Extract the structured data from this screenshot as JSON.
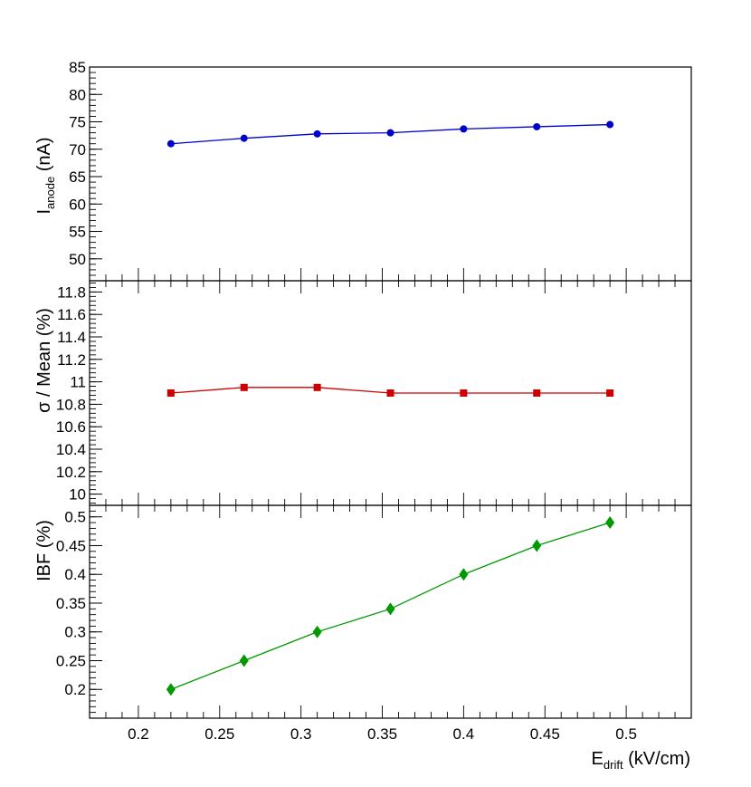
{
  "chart_data": [
    {
      "type": "line",
      "ylabel_main": "I",
      "ylabel_sub": "anode",
      "ylabel_rest": " (nA)",
      "ylim": [
        46,
        85
      ],
      "yticks": [
        50,
        55,
        60,
        65,
        70,
        75,
        80,
        85
      ],
      "ytick_labels": [
        "50",
        "55",
        "60",
        "65",
        "70",
        "75",
        "80",
        "85"
      ],
      "marker": "circle",
      "color": "#0000cc",
      "x": [
        0.22,
        0.265,
        0.31,
        0.355,
        0.4,
        0.445,
        0.49
      ],
      "y": [
        71.0,
        72.0,
        72.8,
        73.0,
        73.7,
        74.1,
        74.5
      ]
    },
    {
      "type": "line",
      "ylabel": "σ / Mean (%)",
      "ylim": [
        9.9,
        11.9
      ],
      "yticks": [
        10,
        10.2,
        10.4,
        10.6,
        10.8,
        11,
        11.2,
        11.4,
        11.6,
        11.8
      ],
      "ytick_labels": [
        "10",
        "10.2",
        "10.4",
        "10.6",
        "10.8",
        "11",
        "11.2",
        "11.4",
        "11.6",
        "11.8"
      ],
      "marker": "square",
      "color": "#cc0000",
      "x": [
        0.22,
        0.265,
        0.31,
        0.355,
        0.4,
        0.445,
        0.49
      ],
      "y": [
        10.9,
        10.95,
        10.95,
        10.9,
        10.9,
        10.9,
        10.9
      ]
    },
    {
      "type": "line",
      "ylabel": "IBF (%)",
      "ylim": [
        0.15,
        0.52
      ],
      "yticks": [
        0.2,
        0.25,
        0.3,
        0.35,
        0.4,
        0.45,
        0.5
      ],
      "ytick_labels": [
        "0.2",
        "0.25",
        "0.3",
        "0.35",
        "0.4",
        "0.45",
        "0.5"
      ],
      "marker": "diamond",
      "color": "#009900",
      "x": [
        0.22,
        0.265,
        0.31,
        0.355,
        0.4,
        0.445,
        0.49
      ],
      "y": [
        0.2,
        0.25,
        0.3,
        0.34,
        0.4,
        0.45,
        0.49
      ]
    }
  ],
  "shared_x": {
    "xlabel_main": "E",
    "xlabel_sub": "drift",
    "xlabel_rest": " (kV/cm)",
    "xlim": [
      0.17,
      0.54
    ],
    "xticks": [
      0.2,
      0.25,
      0.3,
      0.35,
      0.4,
      0.45,
      0.5
    ],
    "xtick_labels": [
      "0.2",
      "0.25",
      "0.3",
      "0.35",
      "0.4",
      "0.45",
      "0.5"
    ]
  },
  "grid": false,
  "legend": "none"
}
